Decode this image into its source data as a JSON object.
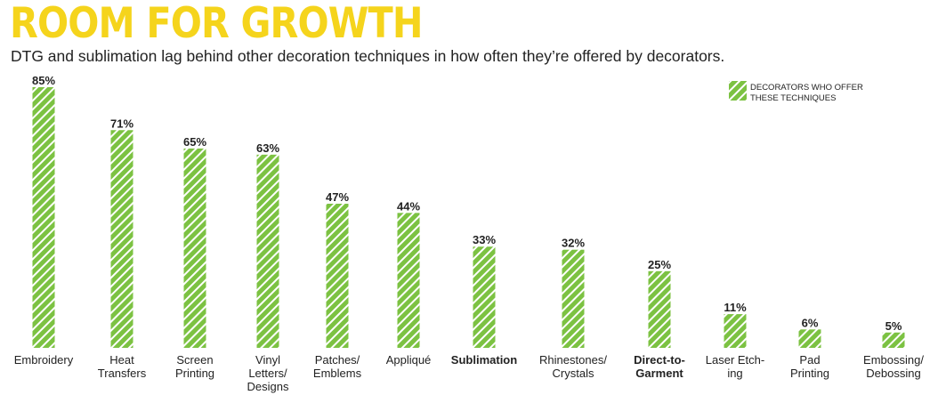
{
  "header": {
    "title": "ROOM FOR GROWTH",
    "subtitle": "DTG and sublimation lag behind other decoration techniques in how often they’re offered by decorators."
  },
  "colors": {
    "title": "#f5d41c",
    "bar": "#7cc242",
    "stripe": "#ffffff",
    "text": "#222222"
  },
  "chart_data": {
    "type": "bar",
    "title": "ROOM FOR GROWTH",
    "subtitle": "DTG and sublimation lag behind other decoration techniques in how often they’re offered by decorators.",
    "categories": [
      [
        "Embroidery"
      ],
      [
        "Heat",
        "Transfers"
      ],
      [
        "Screen",
        "Printing"
      ],
      [
        "Vinyl",
        "Letters/",
        "Designs"
      ],
      [
        "Patches/",
        "Emblems"
      ],
      [
        "Appliqué"
      ],
      [
        "Sublimation"
      ],
      [
        "Rhinestones/",
        "Crystals"
      ],
      [
        "Direct-to-",
        "Garment"
      ],
      [
        "Laser Etch-",
        "ing"
      ],
      [
        "Pad",
        "Printing"
      ],
      [
        "Embossing/",
        "Debossing"
      ]
    ],
    "highlighted": [
      false,
      false,
      false,
      false,
      false,
      false,
      true,
      false,
      true,
      false,
      false,
      false
    ],
    "series": [
      {
        "name": "DECORATORS WHO OFFER THESE TECHNIQUES",
        "values": [
          85,
          71,
          65,
          63,
          47,
          44,
          33,
          32,
          25,
          11,
          6,
          5
        ],
        "labels": [
          "85%",
          "71%",
          "65%",
          "63%",
          "47%",
          "44%",
          "33%",
          "32%",
          "25%",
          "11%",
          "6%",
          "5%"
        ]
      }
    ],
    "legend": {
      "position": "top-right",
      "lines": [
        "DECORATORS WHO OFFER",
        "THESE TECHNIQUES"
      ]
    },
    "ylim": [
      0,
      85
    ],
    "grid": false,
    "xlabel": "",
    "ylabel": ""
  }
}
